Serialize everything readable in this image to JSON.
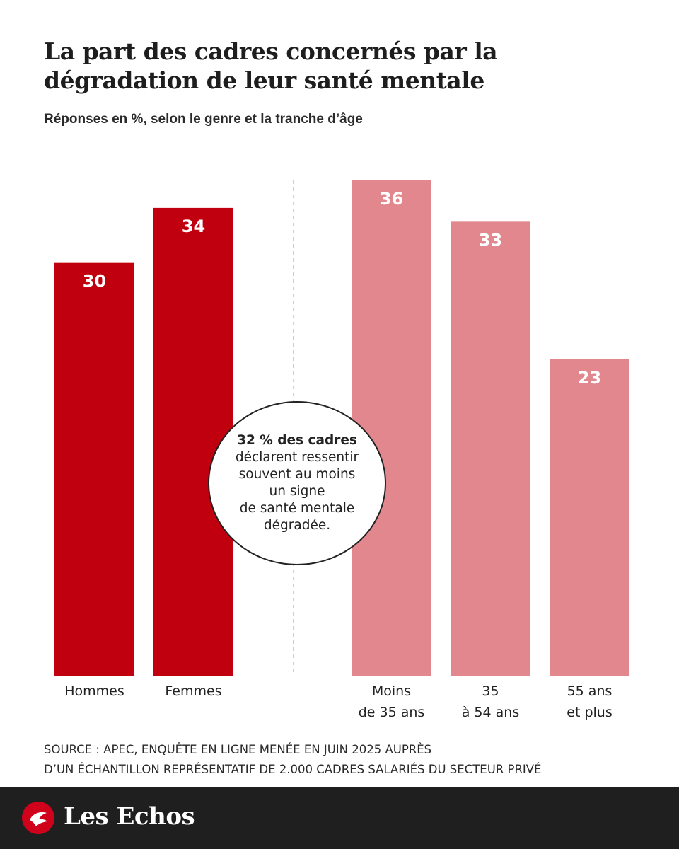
{
  "title": "La part des cadres concernés par la dégradation de leur santé mentale",
  "subtitle": "Réponses en %, selon le genre et la tranche d’âge",
  "chart_data": {
    "type": "bar",
    "title": "La part des cadres concernés par la dégradation de leur santé mentale",
    "ylabel": "Réponses en %",
    "ylim": [
      0,
      36
    ],
    "groups": [
      {
        "name": "genre",
        "color": "#c0000f",
        "categories": [
          [
            "Hommes"
          ],
          [
            "Femmes"
          ]
        ],
        "values": [
          30,
          34
        ]
      },
      {
        "name": "tranche d’âge",
        "color": "#e3878e",
        "categories": [
          [
            "Moins",
            "de 35 ans"
          ],
          [
            "35",
            "à 54 ans"
          ],
          [
            "55 ans",
            "et plus"
          ]
        ],
        "values": [
          36,
          33,
          23
        ]
      }
    ]
  },
  "callout": {
    "strong": "32 % des cadres",
    "lines": [
      "déclarent ressentir",
      "souvent au moins",
      "un signe",
      "de santé mentale",
      "dégradée."
    ]
  },
  "source": [
    "SOURCE : APEC, ENQUÊTE EN LIGNE MENÉE EN JUIN 2025 AUPRÈS",
    "D’UN ÉCHANTILLON REPRÉSENTATIF DE 2.000 CADRES SALARIÉS DU SECTEUR PRIVÉ"
  ],
  "brand": {
    "name": "Les Echos",
    "logo_color": "#d0021b"
  }
}
